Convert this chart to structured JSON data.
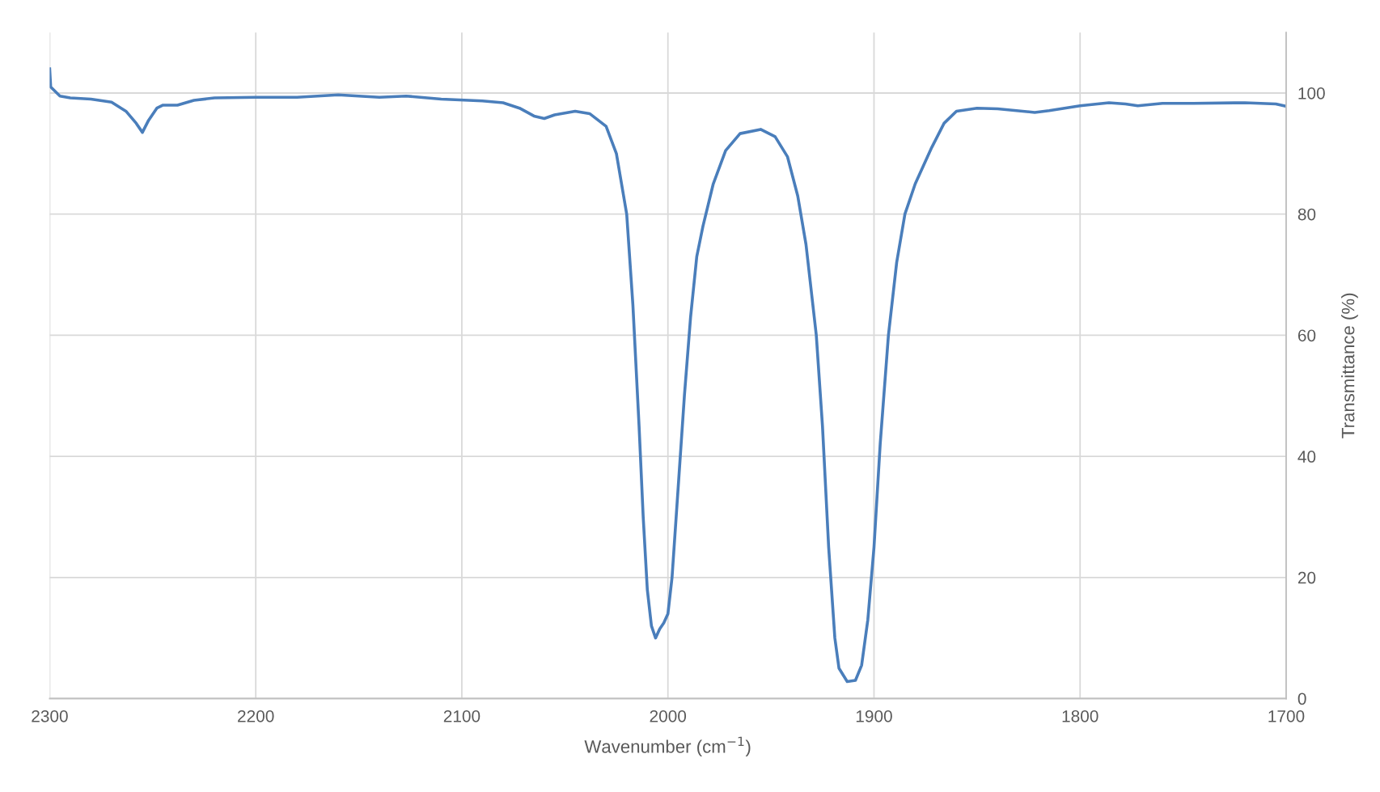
{
  "chart_data": {
    "type": "line",
    "xlabel": "Wavenumber (cm$^{−1}$)",
    "ylabel": "Transmittance (%)",
    "xlim": [
      2300,
      1700
    ],
    "xticks": [
      2300,
      2200,
      2100,
      2000,
      1900,
      1800,
      1700
    ],
    "ylim": [
      0,
      110
    ],
    "yticks": [
      0,
      20,
      40,
      60,
      80,
      100
    ],
    "grid": true,
    "legend": false,
    "marker": "none",
    "line_style": "solid",
    "series": [
      {
        "color": "#4a7ebb",
        "x": [
          2300,
          2299.5,
          2295,
          2290,
          2280,
          2270,
          2263,
          2258,
          2255,
          2252,
          2248,
          2245,
          2238,
          2230,
          2220,
          2200,
          2180,
          2160,
          2140,
          2127,
          2110,
          2090,
          2080,
          2072,
          2065,
          2060,
          2055,
          2045,
          2038,
          2030,
          2025,
          2020,
          2017,
          2014,
          2012,
          2010,
          2008,
          2006,
          2004,
          2002,
          2000,
          1998,
          1995,
          1992,
          1989,
          1986,
          1983,
          1978,
          1972,
          1965,
          1955,
          1948,
          1942,
          1937,
          1933,
          1928,
          1925,
          1922,
          1919,
          1917,
          1913,
          1909,
          1906,
          1903,
          1900,
          1897,
          1893,
          1889,
          1885,
          1880,
          1872,
          1866,
          1860,
          1850,
          1840,
          1822,
          1815,
          1800,
          1786,
          1778,
          1772,
          1760,
          1745,
          1720,
          1705,
          1700
        ],
        "values": [
          104,
          101,
          99.5,
          99.2,
          99,
          98.5,
          97,
          95,
          93.5,
          95.5,
          97.5,
          98,
          98,
          98.8,
          99.2,
          99.3,
          99.3,
          99.7,
          99.3,
          99.5,
          99,
          98.7,
          98.4,
          97.5,
          96.2,
          95.8,
          96.4,
          97,
          96.6,
          94.5,
          90,
          80,
          65,
          45,
          30,
          18,
          12,
          10,
          11.5,
          12.5,
          14,
          20,
          35,
          50,
          63,
          73,
          78,
          85,
          90.5,
          93.3,
          94,
          92.8,
          89.5,
          83,
          75,
          60,
          45,
          25,
          10,
          5,
          2.8,
          3,
          5.5,
          13,
          25,
          42,
          60,
          72,
          80,
          85,
          91,
          95,
          97,
          97.5,
          97.4,
          96.8,
          97.1,
          97.9,
          98.4,
          98.2,
          97.9,
          98.3,
          98.3,
          98.4,
          98.2,
          97.8
        ]
      }
    ]
  }
}
